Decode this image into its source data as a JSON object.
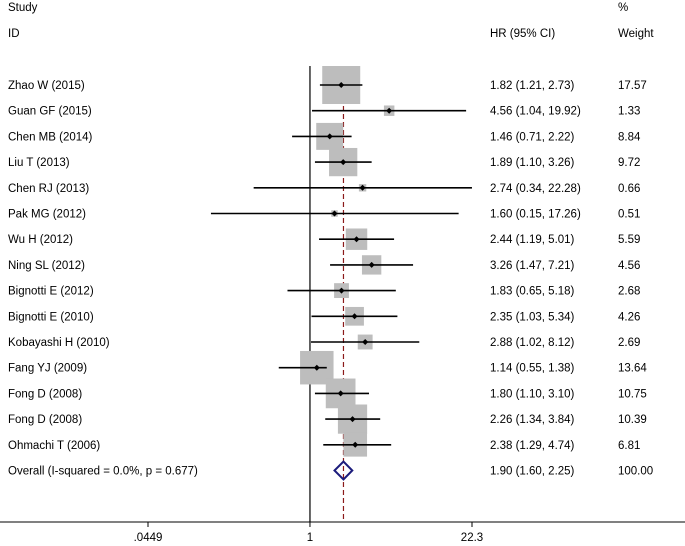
{
  "chart_data": {
    "type": "forest",
    "headers": {
      "study_line1": "Study",
      "study_line2": "ID",
      "effect": "HR (95% CI)",
      "weight_line1": "%",
      "weight_line2": "Weight"
    },
    "x_scale": "log",
    "xlim": [
      0.0449,
      22.3
    ],
    "x_ticks": [
      {
        "value": 0.0449,
        "label": ".0449"
      },
      {
        "value": 1,
        "label": "1"
      },
      {
        "value": 22.3,
        "label": "22.3"
      }
    ],
    "null_line": 1,
    "overall_line": 1.9,
    "studies": [
      {
        "id": "Zhao W (2015)",
        "hr": 1.82,
        "lo": 1.21,
        "hi": 2.73,
        "ci_text": "1.82 (1.21, 2.73)",
        "weight": 17.57,
        "weight_text": "17.57"
      },
      {
        "id": "Guan GF (2015)",
        "hr": 4.56,
        "lo": 1.04,
        "hi": 19.92,
        "ci_text": "4.56 (1.04, 19.92)",
        "weight": 1.33,
        "weight_text": "1.33"
      },
      {
        "id": "Chen MB (2014)",
        "hr": 1.46,
        "lo": 0.71,
        "hi": 2.22,
        "ci_text": "1.46 (0.71, 2.22)",
        "weight": 8.84,
        "weight_text": "8.84"
      },
      {
        "id": "Liu T (2013)",
        "hr": 1.89,
        "lo": 1.1,
        "hi": 3.26,
        "ci_text": "1.89 (1.10, 3.26)",
        "weight": 9.72,
        "weight_text": "9.72"
      },
      {
        "id": "Chen RJ (2013)",
        "hr": 2.74,
        "lo": 0.34,
        "hi": 22.28,
        "ci_text": "2.74 (0.34, 22.28)",
        "weight": 0.66,
        "weight_text": "0.66"
      },
      {
        "id": "Pak MG (2012)",
        "hr": 1.6,
        "lo": 0.15,
        "hi": 17.26,
        "ci_text": "1.60 (0.15, 17.26)",
        "weight": 0.51,
        "weight_text": "0.51"
      },
      {
        "id": "Wu H (2012)",
        "hr": 2.44,
        "lo": 1.19,
        "hi": 5.01,
        "ci_text": "2.44 (1.19, 5.01)",
        "weight": 5.59,
        "weight_text": "5.59"
      },
      {
        "id": "Ning SL (2012)",
        "hr": 3.26,
        "lo": 1.47,
        "hi": 7.21,
        "ci_text": "3.26 (1.47, 7.21)",
        "weight": 4.56,
        "weight_text": "4.56"
      },
      {
        "id": "Bignotti E (2012)",
        "hr": 1.83,
        "lo": 0.65,
        "hi": 5.18,
        "ci_text": "1.83 (0.65, 5.18)",
        "weight": 2.68,
        "weight_text": "2.68"
      },
      {
        "id": "Bignotti E (2010)",
        "hr": 2.35,
        "lo": 1.03,
        "hi": 5.34,
        "ci_text": "2.35 (1.03, 5.34)",
        "weight": 4.26,
        "weight_text": "4.26"
      },
      {
        "id": "Kobayashi H (2010)",
        "hr": 2.88,
        "lo": 1.02,
        "hi": 8.12,
        "ci_text": "2.88 (1.02, 8.12)",
        "weight": 2.69,
        "weight_text": "2.69"
      },
      {
        "id": "Fang YJ (2009)",
        "hr": 1.14,
        "lo": 0.55,
        "hi": 1.38,
        "ci_text": "1.14 (0.55, 1.38)",
        "weight": 13.64,
        "weight_text": "13.64"
      },
      {
        "id": "Fong D (2008)",
        "hr": 1.8,
        "lo": 1.1,
        "hi": 3.1,
        "ci_text": "1.80 (1.10, 3.10)",
        "weight": 10.75,
        "weight_text": "10.75"
      },
      {
        "id": "Fong D (2008)",
        "hr": 2.26,
        "lo": 1.34,
        "hi": 3.84,
        "ci_text": "2.26 (1.34, 3.84)",
        "weight": 10.39,
        "weight_text": "10.39"
      },
      {
        "id": "Ohmachi T (2006)",
        "hr": 2.38,
        "lo": 1.29,
        "hi": 4.74,
        "ci_text": "2.38 (1.29, 4.74)",
        "weight": 6.81,
        "weight_text": "6.81"
      }
    ],
    "overall": {
      "label": "Overall  (I-squared = 0.0%, p = 0.677)",
      "hr": 1.9,
      "lo": 1.6,
      "hi": 2.25,
      "ci_text": "1.90 (1.60, 2.25)",
      "weight_text": "100.00"
    },
    "colors": {
      "box": "#bdbdbd",
      "overall_line": "#8b1a1a",
      "diamond": "#1c1c7c",
      "axis": "#000000"
    },
    "grid": false
  }
}
